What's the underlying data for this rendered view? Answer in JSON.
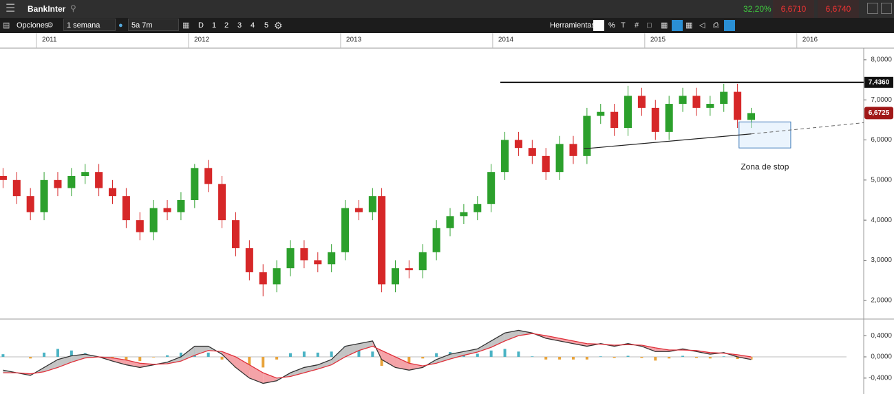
{
  "ui": {
    "symbol": "BankInter",
    "change": "32,20%",
    "bid": "6,6710",
    "ask": "6,6740",
    "options": "Opciones",
    "interval": "1 semana",
    "range": "5a 7m",
    "periods": [
      "D",
      "1",
      "2",
      "3",
      "4",
      "5"
    ],
    "tools": "Herramientas",
    "tool_percent": "%"
  },
  "chart_data": [
    {
      "type": "candlestick",
      "x": [
        2010.78,
        2010.87,
        2010.96,
        2011.05,
        2011.14,
        2011.23,
        2011.32,
        2011.41,
        2011.5,
        2011.59,
        2011.68,
        2011.77,
        2011.86,
        2011.95,
        2012.04,
        2012.13,
        2012.22,
        2012.31,
        2012.4,
        2012.49,
        2012.58,
        2012.67,
        2012.76,
        2012.85,
        2012.94,
        2013.03,
        2013.12,
        2013.21,
        2013.27,
        2013.36,
        2013.45,
        2013.54,
        2013.63,
        2013.72,
        2013.81,
        2013.9,
        2013.99,
        2014.08,
        2014.17,
        2014.26,
        2014.35,
        2014.44,
        2014.53,
        2014.62,
        2014.71,
        2014.8,
        2014.89,
        2014.98,
        2015.07,
        2015.16,
        2015.25,
        2015.34,
        2015.43,
        2015.52,
        2015.61,
        2015.7
      ],
      "open": [
        5.1,
        5.0,
        4.6,
        4.2,
        5.0,
        4.8,
        5.1,
        5.2,
        4.8,
        4.6,
        4.0,
        3.7,
        4.3,
        4.2,
        4.5,
        5.3,
        4.9,
        4.0,
        3.3,
        2.7,
        2.4,
        2.8,
        3.3,
        3.0,
        2.9,
        3.2,
        4.3,
        4.2,
        4.6,
        2.4,
        2.8,
        2.75,
        3.2,
        3.8,
        4.1,
        4.2,
        4.4,
        5.2,
        6.0,
        5.8,
        5.6,
        5.2,
        5.9,
        5.6,
        6.6,
        6.7,
        6.3,
        7.1,
        6.8,
        6.2,
        6.9,
        7.1,
        6.8,
        6.9,
        7.2,
        6.5
      ],
      "high": [
        5.3,
        5.2,
        4.8,
        5.2,
        5.2,
        5.3,
        5.4,
        5.4,
        5.0,
        4.8,
        4.2,
        4.5,
        4.5,
        4.7,
        5.4,
        5.5,
        5.1,
        4.2,
        3.5,
        2.9,
        3.0,
        3.5,
        3.5,
        3.2,
        3.4,
        4.5,
        4.5,
        4.8,
        4.8,
        3.0,
        3.0,
        3.4,
        4.0,
        4.3,
        4.4,
        4.6,
        5.4,
        6.2,
        6.2,
        6.0,
        5.8,
        6.1,
        6.1,
        6.8,
        6.9,
        6.9,
        7.35,
        7.3,
        7.0,
        7.1,
        7.3,
        7.3,
        7.1,
        7.4,
        7.4,
        6.8
      ],
      "low": [
        4.8,
        4.4,
        4.0,
        4.0,
        4.6,
        4.6,
        4.9,
        4.6,
        4.4,
        3.8,
        3.5,
        3.5,
        4.0,
        4.0,
        4.3,
        4.7,
        3.8,
        3.1,
        2.5,
        2.1,
        2.2,
        2.6,
        2.8,
        2.7,
        2.7,
        3.0,
        4.0,
        4.0,
        2.2,
        2.2,
        2.55,
        2.55,
        3.0,
        3.6,
        3.9,
        4.0,
        4.2,
        5.0,
        5.6,
        5.4,
        5.0,
        5.0,
        5.4,
        5.4,
        6.4,
        6.1,
        6.1,
        6.6,
        6.0,
        6.0,
        6.7,
        6.6,
        6.6,
        6.7,
        6.3,
        6.3
      ],
      "close": [
        5.0,
        4.6,
        4.2,
        5.0,
        4.8,
        5.1,
        5.2,
        4.8,
        4.6,
        4.0,
        3.7,
        4.3,
        4.2,
        4.5,
        5.3,
        4.9,
        4.0,
        3.3,
        2.7,
        2.4,
        2.8,
        3.3,
        3.0,
        2.9,
        3.2,
        4.3,
        4.2,
        4.6,
        2.4,
        2.8,
        2.75,
        3.2,
        3.8,
        4.1,
        4.2,
        4.4,
        5.2,
        6.0,
        5.8,
        5.6,
        5.2,
        5.9,
        5.6,
        6.6,
        6.7,
        6.3,
        7.1,
        6.8,
        6.2,
        6.9,
        7.1,
        6.8,
        6.9,
        7.2,
        6.5,
        6.67
      ],
      "up_color": "#2ca02c",
      "down_color": "#d62728",
      "xlim": [
        2010.76,
        2016.44
      ],
      "xticks": [
        2011,
        2012,
        2013,
        2014,
        2015,
        2016
      ],
      "ylim": [
        1.55,
        8.29
      ],
      "yticks": [
        {
          "value": 2,
          "label": "2,0000"
        },
        {
          "value": 3,
          "label": "3,0000"
        },
        {
          "value": 4,
          "label": "4,0000"
        },
        {
          "value": 5,
          "label": "5,0000"
        },
        {
          "value": 6,
          "label": "6,0000"
        },
        {
          "value": 7,
          "label": "7,0000"
        },
        {
          "value": 8,
          "label": "8,0000"
        }
      ],
      "resistance": {
        "x_start": 2014.05,
        "value": 7.436,
        "label": "7,4360"
      },
      "price_tag": {
        "value": 6.6725,
        "label": "6,6725"
      },
      "support": {
        "x": [
          2014.6,
          2015.7
        ],
        "values": [
          5.78,
          6.15
        ]
      },
      "support_extension": {
        "x": [
          2015.7,
          2016.44
        ],
        "values": [
          6.15,
          6.43
        ]
      },
      "stop_zone": {
        "label": "Zona de stop",
        "xlim": [
          2015.62,
          2015.96
        ],
        "ylim": [
          5.8,
          6.45
        ]
      }
    },
    {
      "type": "macd",
      "macd": [
        -0.25,
        -0.3,
        -0.35,
        -0.2,
        -0.05,
        0.02,
        0.05,
        0.0,
        -0.08,
        -0.15,
        -0.2,
        -0.15,
        -0.1,
        0.0,
        0.2,
        0.2,
        0.05,
        -0.2,
        -0.4,
        -0.5,
        -0.45,
        -0.3,
        -0.2,
        -0.15,
        -0.05,
        0.2,
        0.25,
        0.3,
        -0.05,
        -0.2,
        -0.25,
        -0.2,
        -0.05,
        0.05,
        0.1,
        0.15,
        0.3,
        0.45,
        0.5,
        0.45,
        0.35,
        0.3,
        0.25,
        0.2,
        0.25,
        0.2,
        0.25,
        0.2,
        0.1,
        0.1,
        0.15,
        0.1,
        0.05,
        0.08,
        0.0,
        -0.05
      ],
      "signal": [
        -0.3,
        -0.3,
        -0.32,
        -0.28,
        -0.2,
        -0.1,
        -0.02,
        0.0,
        -0.02,
        -0.06,
        -0.12,
        -0.14,
        -0.13,
        -0.08,
        0.03,
        0.12,
        0.1,
        0.0,
        -0.15,
        -0.3,
        -0.4,
        -0.37,
        -0.3,
        -0.23,
        -0.15,
        0.0,
        0.12,
        0.2,
        0.12,
        0.0,
        -0.12,
        -0.17,
        -0.12,
        -0.04,
        0.03,
        0.09,
        0.18,
        0.3,
        0.4,
        0.44,
        0.4,
        0.35,
        0.3,
        0.25,
        0.24,
        0.22,
        0.23,
        0.22,
        0.17,
        0.13,
        0.13,
        0.12,
        0.08,
        0.07,
        0.04,
        0.0
      ],
      "histogram": [
        0.05,
        0,
        -0.03,
        0.08,
        0.15,
        0.12,
        0.07,
        0,
        -0.06,
        -0.09,
        -0.08,
        -0.01,
        0.03,
        0.08,
        0.17,
        0.08,
        -0.05,
        -0.2,
        -0.25,
        -0.2,
        -0.05,
        0.07,
        0.1,
        0.08,
        0.1,
        0.2,
        0.13,
        0.1,
        -0.17,
        -0.2,
        -0.13,
        -0.03,
        0.07,
        0.09,
        0.07,
        0.06,
        0.12,
        0.15,
        0.1,
        0.01,
        -0.05,
        -0.05,
        -0.05,
        -0.05,
        0.01,
        -0.02,
        0.02,
        -0.02,
        -0.07,
        -0.03,
        0.02,
        -0.02,
        -0.03,
        0.01,
        -0.04,
        -0.05
      ],
      "macd_color": "#333333",
      "signal_color": "#e0303a",
      "up_fill": "#c4c4c4",
      "down_fill": "#f4a3a8",
      "hist_up_color": "#4bb3c4",
      "hist_down_color": "#e8a33a",
      "ylim": [
        -0.7,
        0.7
      ],
      "yticks": [
        {
          "value": -0.4,
          "label": "-0,4000"
        },
        {
          "value": 0,
          "label": "0,0000"
        },
        {
          "value": 0.4,
          "label": "0,4000"
        }
      ]
    }
  ]
}
